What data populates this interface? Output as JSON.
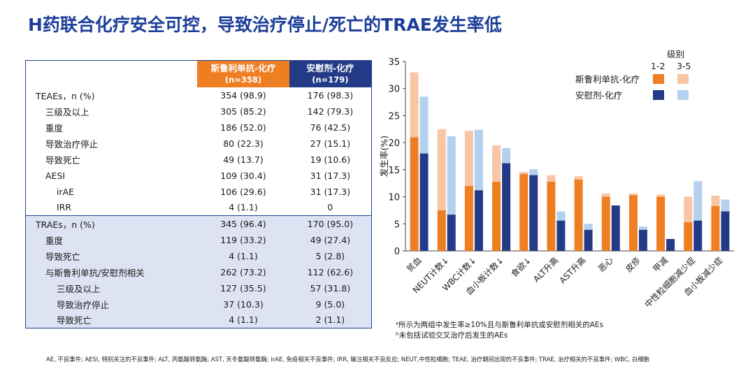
{
  "title": "H药联合化疗安全可控，导致治疗停止/死亡的TRAE发生率低",
  "table": {
    "headers": {
      "pembro": "斯鲁利单抗-化疗",
      "pembro_n": "(n=358)",
      "placebo": "安慰剂-化疗",
      "placebo_n": "(n=179)"
    },
    "rows": [
      {
        "label": "TEAEs，n (%)",
        "indent": 0,
        "group": "teae",
        "a": "354 (98.9)",
        "b": "176 (98.3)"
      },
      {
        "label": "三级及以上",
        "indent": 1,
        "group": "teae",
        "a": "305 (85.2)",
        "b": "142 (79.3)"
      },
      {
        "label": "重度",
        "indent": 1,
        "group": "teae",
        "a": "186 (52.0)",
        "b": "76 (42.5)"
      },
      {
        "label": "导致治疗停止",
        "indent": 1,
        "group": "teae",
        "a": "80 (22.3)",
        "b": "27 (15.1)"
      },
      {
        "label": "导致死亡",
        "indent": 1,
        "group": "teae",
        "a": "49 (13.7)",
        "b": "19 (10.6)"
      },
      {
        "label": "AESI",
        "indent": 1,
        "group": "teae",
        "a": "109 (30.4)",
        "b": "31 (17.3)"
      },
      {
        "label": "irAE",
        "indent": 2,
        "group": "teae",
        "a": "106 (29.6)",
        "b": "31 (17.3)"
      },
      {
        "label": "IRR",
        "indent": 2,
        "group": "teae",
        "a": "4 (1.1)",
        "b": "0"
      },
      {
        "label": "TRAEs，n (%)",
        "indent": 0,
        "group": "trae",
        "a": "345 (96.4)",
        "b": "170 (95.0)"
      },
      {
        "label": "重度",
        "indent": 1,
        "group": "trae",
        "a": "119 (33.2)",
        "b": "49 (27.4)"
      },
      {
        "label": "导致死亡",
        "indent": 1,
        "group": "trae",
        "a": "4 (1.1)",
        "b": "5 (2.8)"
      },
      {
        "label": "与斯鲁利单抗/安慰剂相关",
        "indent": 1,
        "group": "trae",
        "a": "262 (73.2)",
        "b": "112 (62.6)"
      },
      {
        "label": "三级及以上",
        "indent": 2,
        "group": "trae",
        "a": "127 (35.5)",
        "b": "57 (31.8)"
      },
      {
        "label": "导致治疗停止",
        "indent": 2,
        "group": "trae",
        "a": "37 (10.3)",
        "b": "9 (5.0)"
      },
      {
        "label": "导致死亡",
        "indent": 2,
        "group": "trae",
        "a": "4 (1.1)",
        "b": "2 (1.1)"
      }
    ]
  },
  "colors": {
    "pembro_g12": "#ef7d22",
    "pembro_g35": "#f8c6a5",
    "placebo_g12": "#233a86",
    "placebo_g35": "#b3d1ee",
    "header_orange": "#ef7d22",
    "header_navy": "#233a86",
    "title_blue": "#1d3f9a",
    "trae_band": "#dde3f2"
  },
  "chart_data": {
    "type": "bar",
    "ylabel": "发生率(%)",
    "ylim": [
      0,
      35
    ],
    "yticks": [
      0,
      5,
      10,
      15,
      20,
      25,
      30,
      35
    ],
    "grid": false,
    "legend_placement": "top-right",
    "legend": {
      "title": "级别",
      "grade_labels": [
        "1-2",
        "3-5"
      ],
      "series_names": [
        "斯鲁利单抗-化疗",
        "安慰剂-化疗"
      ]
    },
    "categories": [
      "贫血",
      "NEUT计数↓",
      "WBC计数↓",
      "血小板计数↓",
      "食欲↓",
      "ALT升高",
      "AST升高",
      "恶心",
      "皮疹",
      "甲减",
      "中性粒细胞减少症",
      "血小板减少症"
    ],
    "series": [
      {
        "name": "斯鲁利单抗-化疗",
        "grade_1_2": [
          21,
          7.5,
          12,
          12.8,
          14.2,
          12.8,
          13.2,
          10,
          10.3,
          10,
          5.3,
          8.3
        ],
        "total": [
          33,
          22.5,
          22.2,
          19.5,
          14.6,
          14,
          13.8,
          10.6,
          10.6,
          10.4,
          10,
          10.2
        ]
      },
      {
        "name": "安慰剂-化疗",
        "grade_1_2": [
          18,
          6.7,
          11.2,
          16.2,
          14,
          5.6,
          3.9,
          8.4,
          3.9,
          2.2,
          5.6,
          7.3
        ],
        "total": [
          28.5,
          21.2,
          22.4,
          19,
          15.1,
          7.3,
          5,
          8.4,
          4.5,
          2.2,
          12.9,
          9.5
        ]
      }
    ]
  },
  "footnotes": [
    "ᵃ所示为两组中发生率≥10%且与斯鲁利单抗或安慰剂相关的AEs",
    "ᵇ未包括试验交叉治疗后发生的AEs"
  ],
  "abbreviations": "AE, 不良事件; AESI, 特别关注的不良事件; ALT, 丙氨酸转氨酶; AST, 天冬氨酸转氨酶; irAE, 免疫相关不良事件; IRR, 输注相关不良反应; NEUT,中性粒细胞; TEAE, 治疗期间出现的不良事件; TRAE, 治疗相关的不良事件; WBC, 白细胞"
}
